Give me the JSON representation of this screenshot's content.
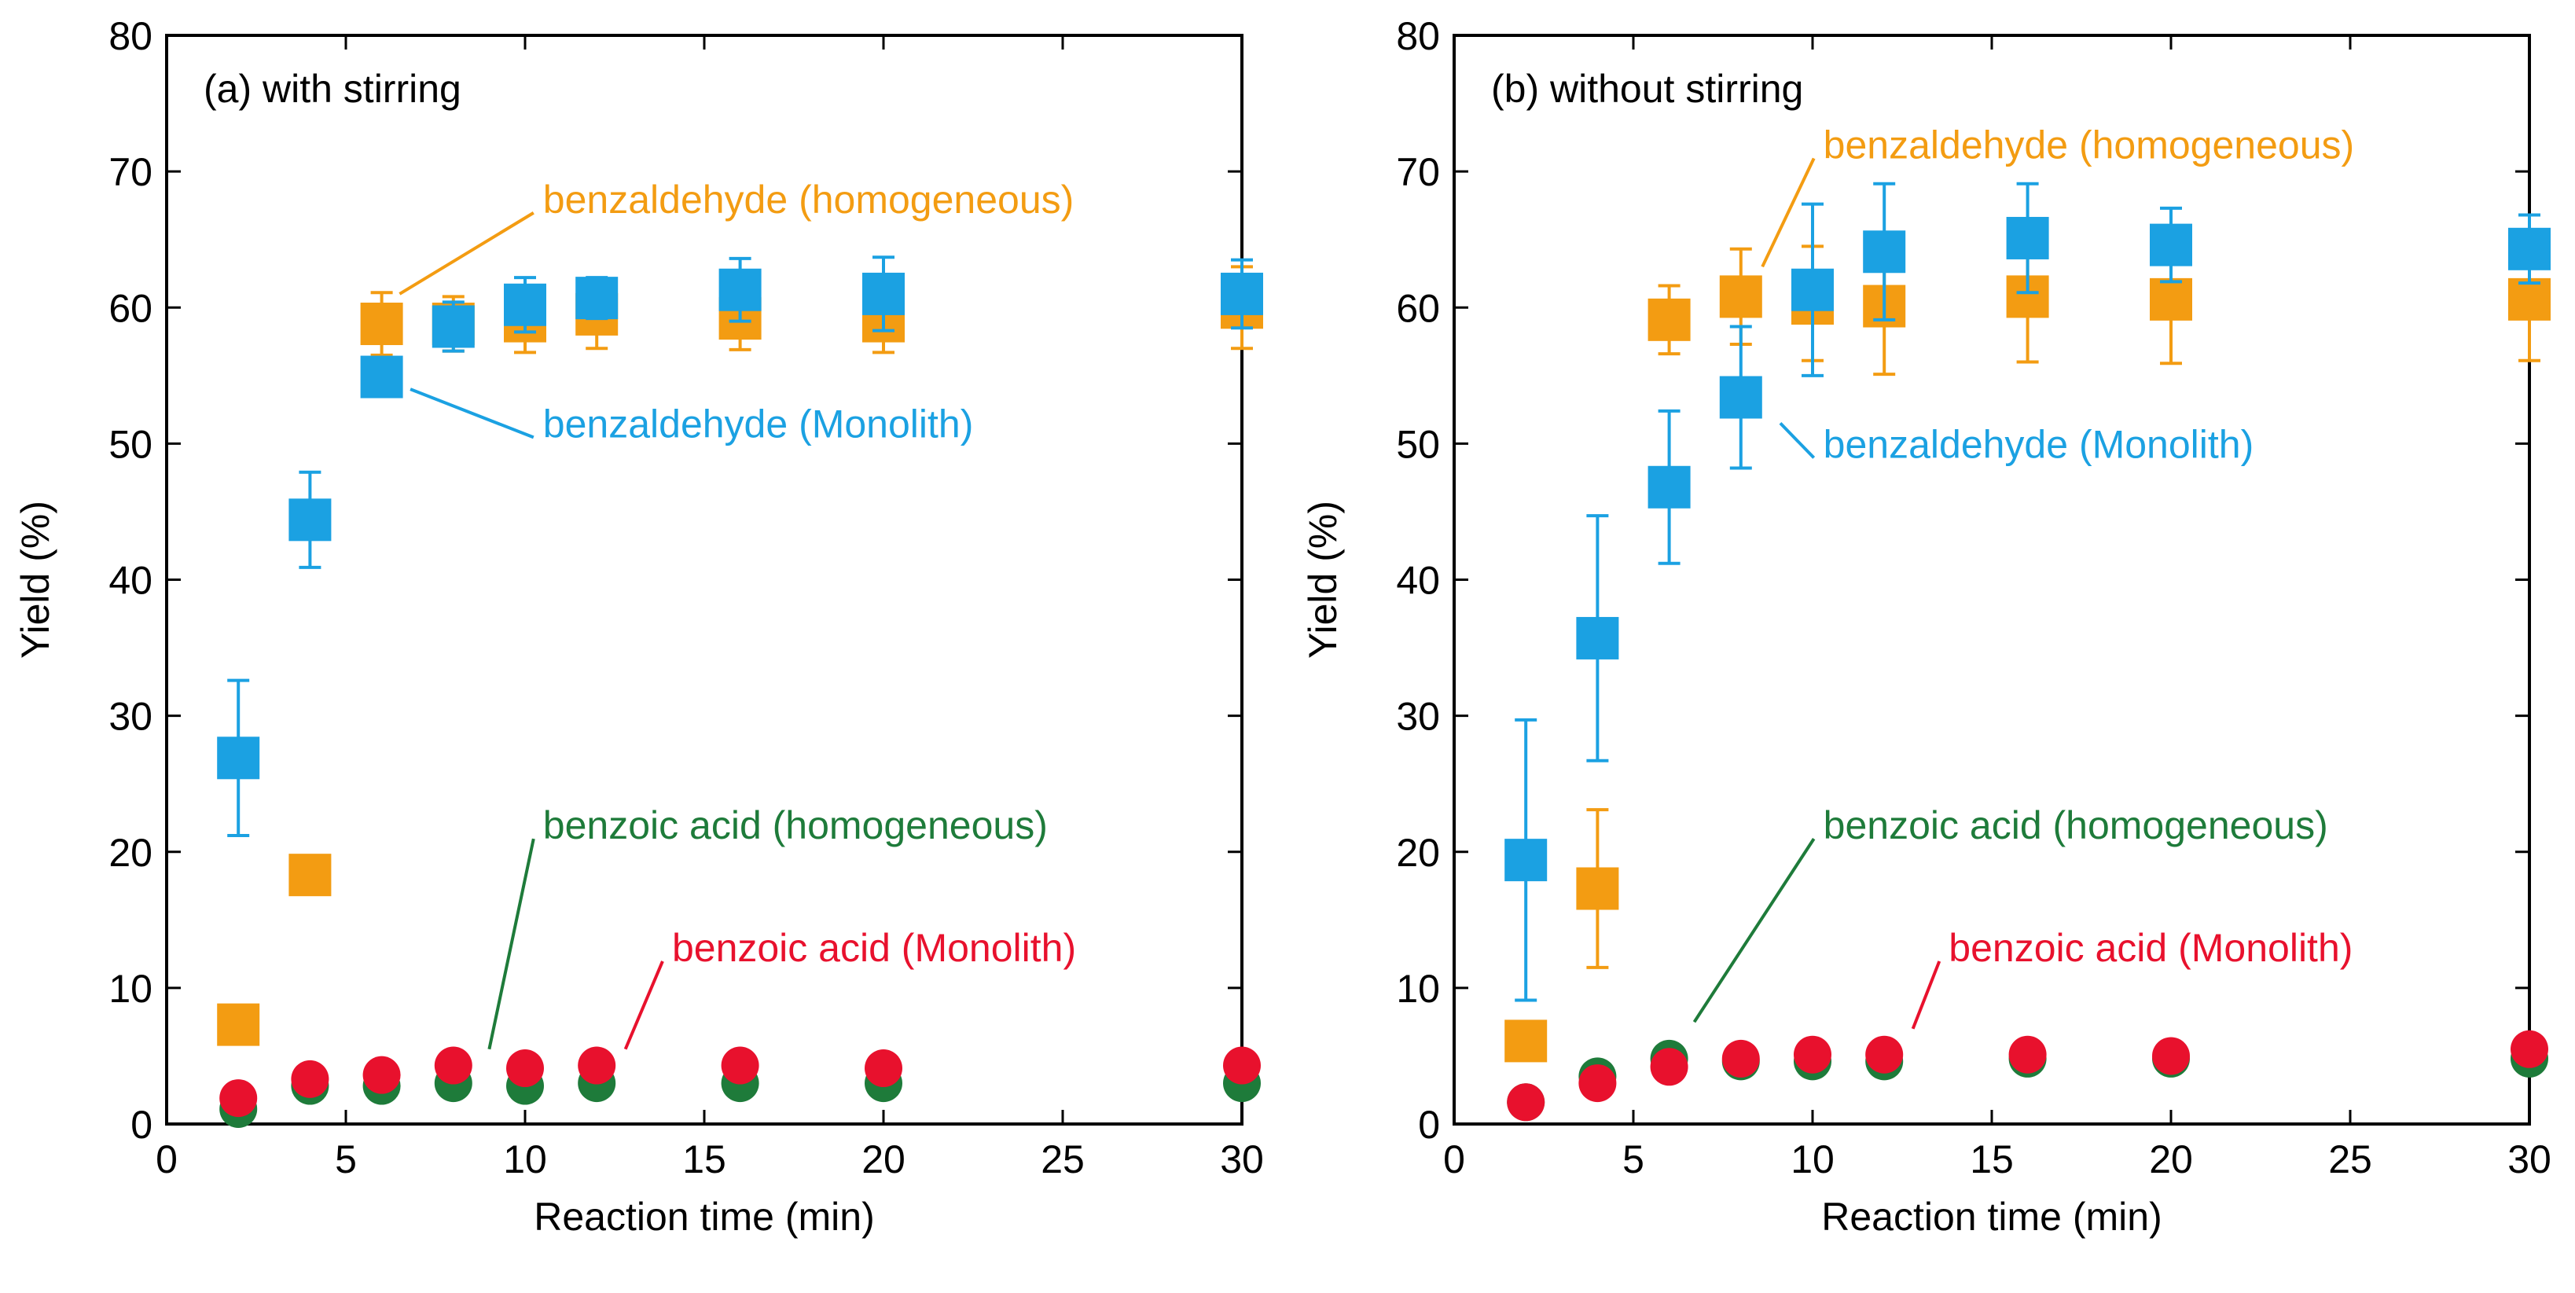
{
  "chart_data": [
    {
      "type": "scatter",
      "title": "(a) with stirring",
      "xlabel": "Reaction time (min)",
      "ylabel": "Yield (%)",
      "xlim": [
        0,
        30
      ],
      "ylim": [
        0,
        80
      ],
      "xticks": [
        "0",
        "5",
        "10",
        "15",
        "20",
        "25",
        "30"
      ],
      "yticks": [
        "0",
        "10",
        "20",
        "30",
        "40",
        "50",
        "60",
        "70",
        "80"
      ],
      "series": [
        {
          "name": "benzaldehyde (homogeneous)",
          "color": "#f39c12",
          "marker": "square",
          "x": [
            2,
            4,
            6,
            8,
            10,
            12,
            16,
            20,
            30
          ],
          "y": [
            7.3,
            18.3,
            58.8,
            58.8,
            59.0,
            59.5,
            59.2,
            59.0,
            60.0
          ],
          "err": [
            0,
            0,
            2.3,
            2.0,
            2.3,
            2.5,
            2.3,
            2.3,
            3.0
          ]
        },
        {
          "name": "benzaldehyde (Monolith)",
          "color": "#1ba1e2",
          "marker": "square",
          "x": [
            2,
            4,
            6,
            8,
            10,
            12,
            16,
            20,
            30
          ],
          "y": [
            26.9,
            44.4,
            54.9,
            58.6,
            60.2,
            60.7,
            61.3,
            61.0,
            61.0
          ],
          "err": [
            5.7,
            3.5,
            0,
            1.8,
            2.0,
            1.5,
            2.3,
            2.7,
            2.5
          ]
        },
        {
          "name": "benzoic acid (homogeneous)",
          "color": "#1e7b3a",
          "marker": "circle",
          "x": [
            2,
            4,
            6,
            8,
            10,
            12,
            16,
            20,
            30
          ],
          "y": [
            1.1,
            2.8,
            2.8,
            3.0,
            2.8,
            3.0,
            3.0,
            3.0,
            3.0
          ],
          "err": [
            0,
            0,
            0,
            0,
            0,
            0,
            0,
            0,
            0
          ]
        },
        {
          "name": "benzoic acid (Monolith)",
          "color": "#e8112d",
          "marker": "circle",
          "x": [
            2,
            4,
            6,
            8,
            10,
            12,
            16,
            20,
            30
          ],
          "y": [
            1.9,
            3.3,
            3.6,
            4.3,
            4.1,
            4.3,
            4.3,
            4.1,
            4.3
          ],
          "err": [
            0,
            0,
            0,
            0,
            0,
            0,
            0,
            0,
            0
          ]
        }
      ],
      "annotations": [
        {
          "text": "benzaldehyde (homogeneous)",
          "color": "#f39c12",
          "x": 10.5,
          "y": 68,
          "to_x": 6.5,
          "to_y": 61
        },
        {
          "text": "benzaldehyde (Monolith)",
          "color": "#1ba1e2",
          "x": 10.5,
          "y": 51.5,
          "to_x": 6.8,
          "to_y": 54
        },
        {
          "text": "benzoic acid (homogeneous)",
          "color": "#1e7b3a",
          "x": 10.5,
          "y": 22,
          "to_x": 9.0,
          "to_y": 5.5
        },
        {
          "text": "benzoic acid (Monolith)",
          "color": "#e8112d",
          "x": 14.1,
          "y": 13,
          "to_x": 12.8,
          "to_y": 5.5
        }
      ]
    },
    {
      "type": "scatter",
      "title": "(b) without stirring",
      "xlabel": "Reaction time (min)",
      "ylabel": "Yield (%)",
      "xlim": [
        0,
        30
      ],
      "ylim": [
        0,
        80
      ],
      "xticks": [
        "0",
        "5",
        "10",
        "15",
        "20",
        "25",
        "30"
      ],
      "yticks": [
        "0",
        "10",
        "20",
        "30",
        "40",
        "50",
        "60",
        "70",
        "80"
      ],
      "series": [
        {
          "name": "benzaldehyde (homogeneous)",
          "color": "#f39c12",
          "marker": "square",
          "x": [
            2,
            4,
            6,
            8,
            10,
            12,
            16,
            20,
            30
          ],
          "y": [
            6.1,
            17.3,
            59.1,
            60.8,
            60.3,
            60.1,
            60.8,
            60.6,
            60.6
          ],
          "err": [
            0,
            5.8,
            2.5,
            3.5,
            4.2,
            5.0,
            4.8,
            4.7,
            4.5
          ]
        },
        {
          "name": "benzaldehyde (Monolith)",
          "color": "#1ba1e2",
          "marker": "square",
          "x": [
            2,
            4,
            6,
            8,
            10,
            12,
            16,
            20,
            30
          ],
          "y": [
            19.4,
            35.7,
            46.8,
            53.4,
            61.3,
            64.1,
            65.1,
            64.6,
            64.3
          ],
          "err": [
            10.3,
            9.0,
            5.6,
            5.2,
            6.3,
            5.0,
            4.0,
            2.7,
            2.5
          ]
        },
        {
          "name": "benzoic acid (homogeneous)",
          "color": "#1e7b3a",
          "marker": "circle",
          "x": [
            2,
            4,
            6,
            8,
            10,
            12,
            16,
            20,
            30
          ],
          "y": [
            1.6,
            3.5,
            4.8,
            4.6,
            4.6,
            4.6,
            4.8,
            4.8,
            4.8
          ],
          "err": [
            0,
            0,
            0,
            0,
            0,
            0,
            0,
            0,
            0
          ]
        },
        {
          "name": "benzoic acid (Monolith)",
          "color": "#e8112d",
          "marker": "circle",
          "x": [
            2,
            4,
            6,
            8,
            10,
            12,
            16,
            20,
            30
          ],
          "y": [
            1.6,
            3.0,
            4.2,
            4.8,
            5.1,
            5.1,
            5.1,
            5.0,
            5.5
          ],
          "err": [
            0,
            0,
            0,
            0,
            0,
            0,
            0,
            0,
            0
          ]
        }
      ],
      "annotations": [
        {
          "text": "benzaldehyde (homogeneous)",
          "color": "#f39c12",
          "x": 10.3,
          "y": 72,
          "to_x": 8.6,
          "to_y": 63
        },
        {
          "text": "benzaldehyde (Monolith)",
          "color": "#1ba1e2",
          "x": 10.3,
          "y": 50,
          "to_x": 9.1,
          "to_y": 51.5
        },
        {
          "text": "benzoic acid (homogeneous)",
          "color": "#1e7b3a",
          "x": 10.3,
          "y": 22,
          "to_x": 6.7,
          "to_y": 7.5
        },
        {
          "text": "benzoic acid (Monolith)",
          "color": "#e8112d",
          "x": 13.8,
          "y": 13,
          "to_x": 12.8,
          "to_y": 7.0
        }
      ]
    }
  ]
}
